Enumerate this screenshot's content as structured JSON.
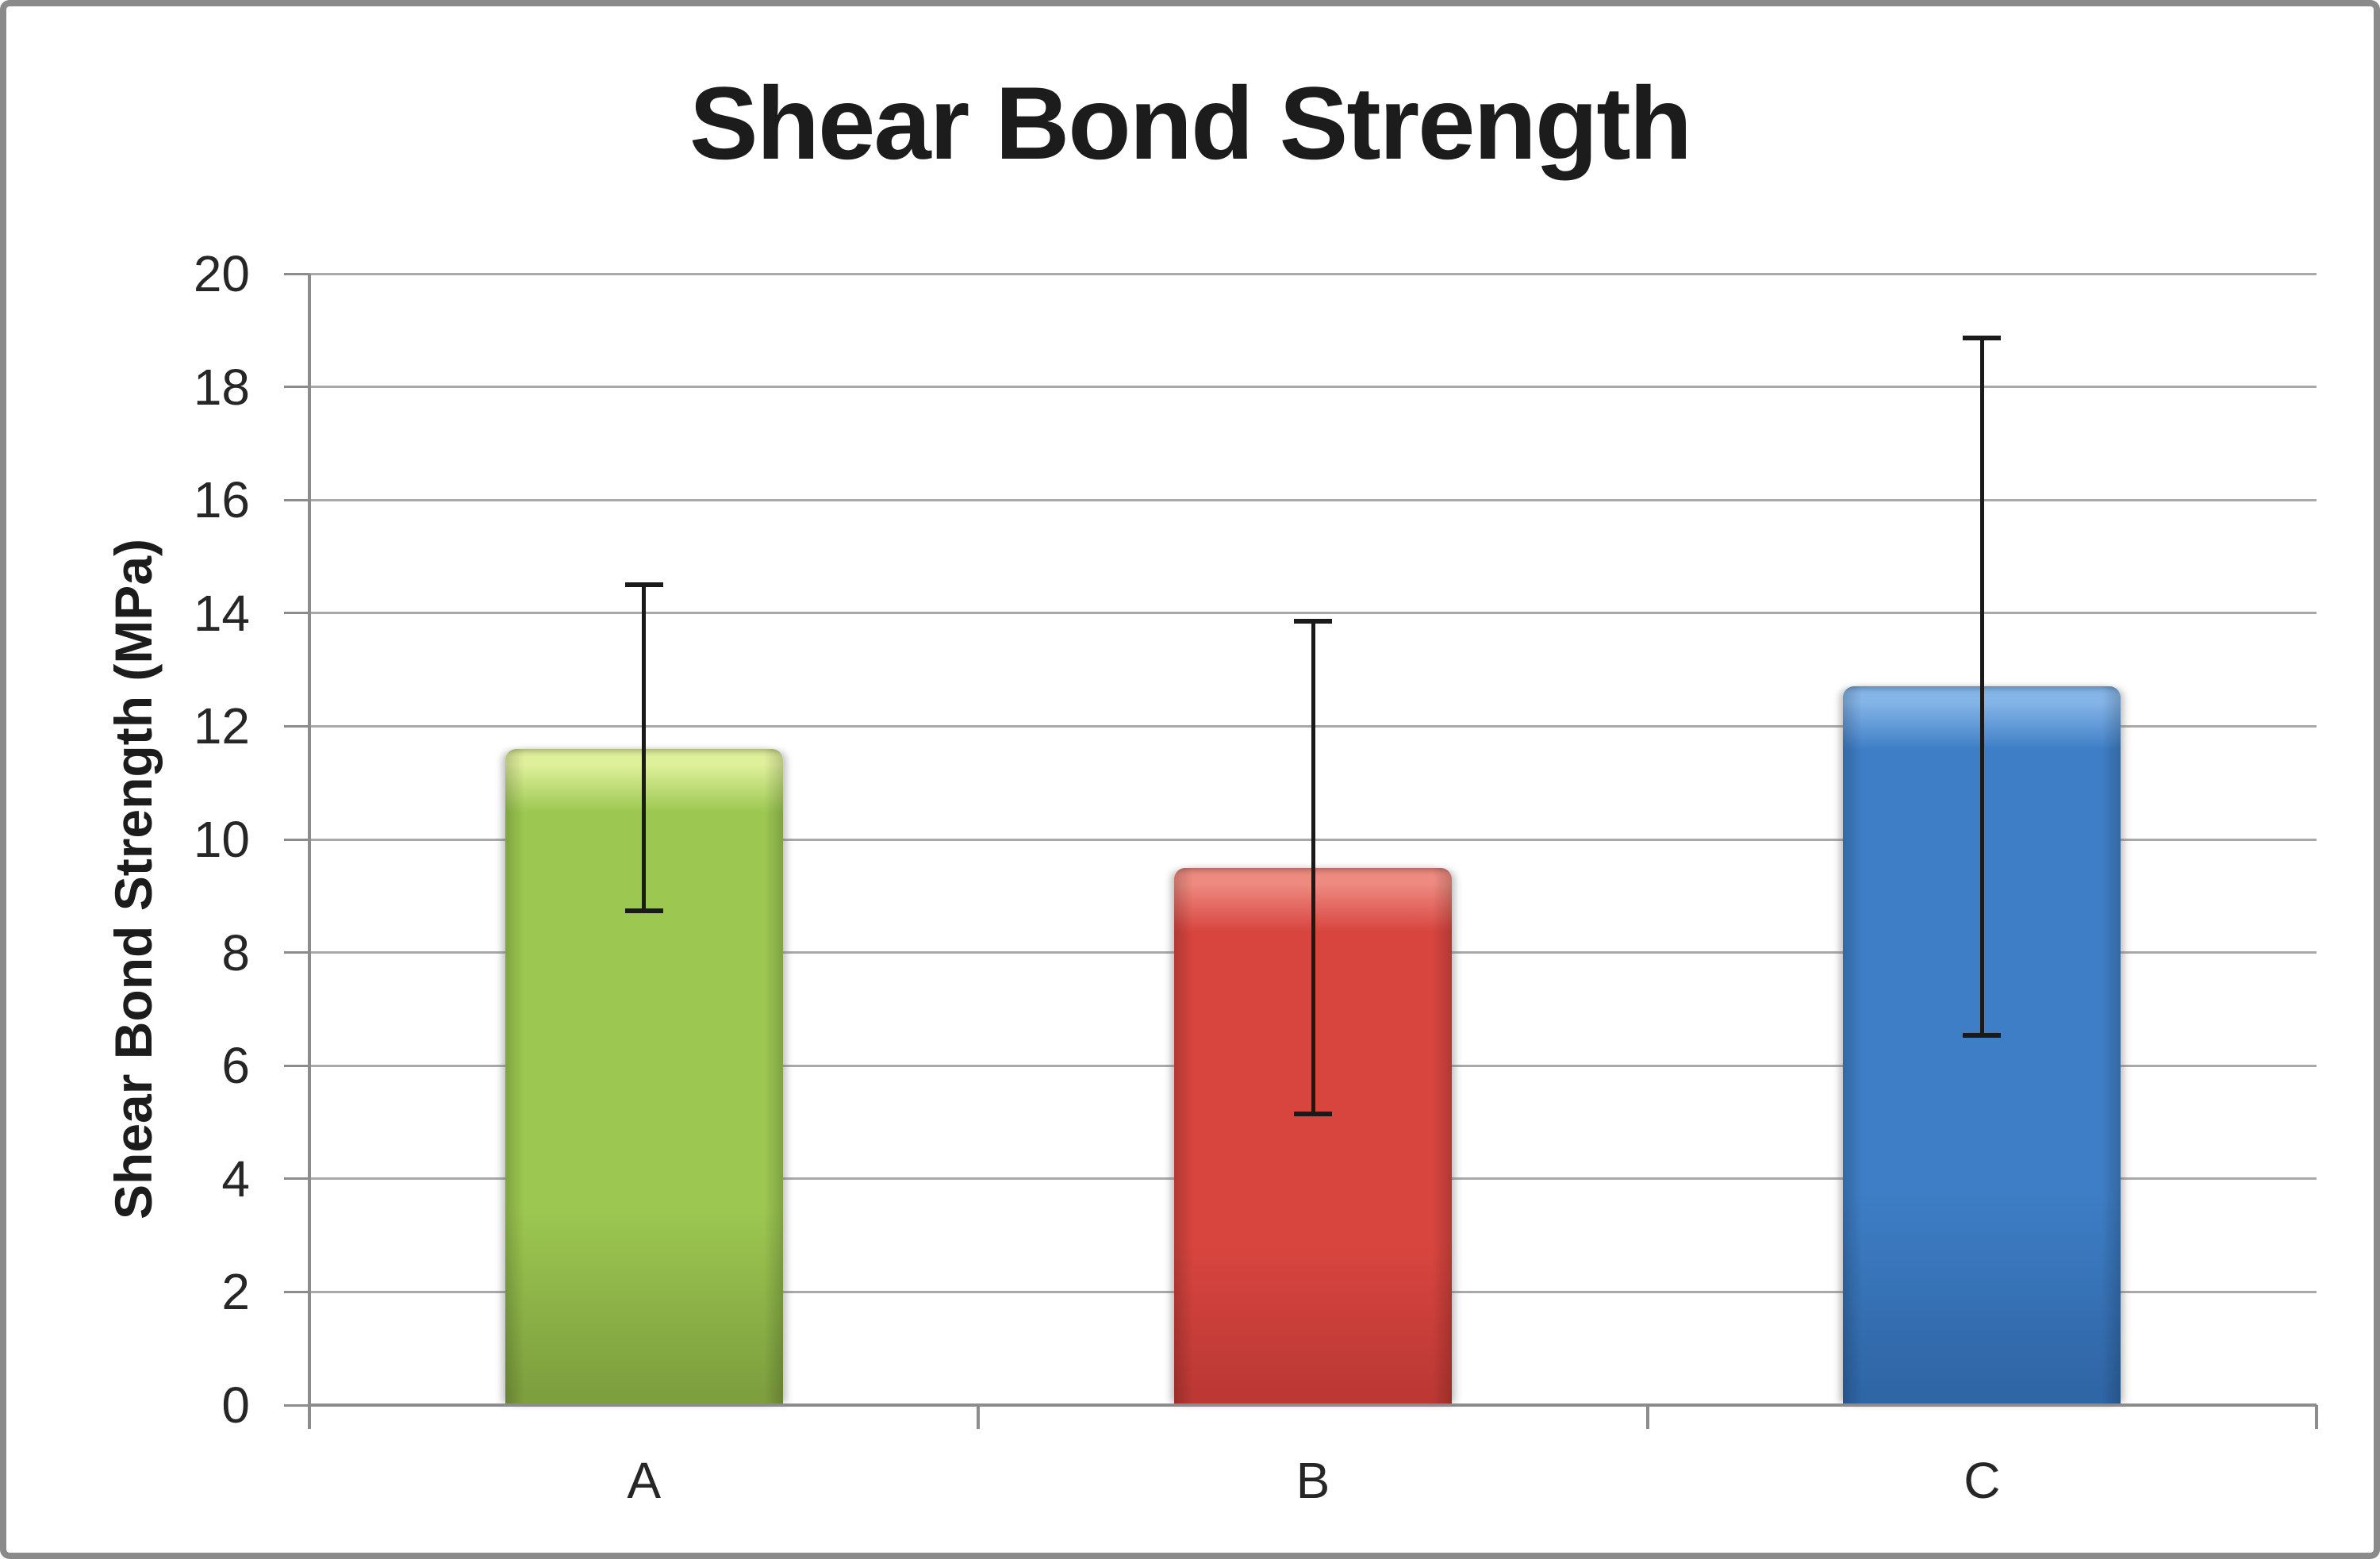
{
  "chart_data": {
    "type": "bar",
    "title": "Shear Bond Strength",
    "ylabel": "Shear Bond Strength (MPa)",
    "xlabel": "",
    "categories": [
      "A",
      "B",
      "C"
    ],
    "series": [
      {
        "name": "Shear Bond Strength",
        "values": [
          11.6,
          9.5,
          12.7
        ],
        "error_top": [
          14.55,
          13.9,
          18.9
        ],
        "error_bottom": [
          8.7,
          5.1,
          6.5
        ]
      }
    ],
    "ylim": [
      0,
      20
    ],
    "ytick_step": 2,
    "ytick_values": [
      0,
      2,
      4,
      6,
      8,
      10,
      12,
      14,
      16,
      18,
      20
    ],
    "ytick_labels": [
      "0",
      "2",
      "4",
      "6",
      "8",
      "10",
      "12",
      "14",
      "16",
      "18",
      "20"
    ],
    "grid": true,
    "legend": false,
    "bar_colors": [
      {
        "name": "green",
        "light": "#dff09b",
        "main": "#9cc851",
        "dark": "#7e9f3e"
      },
      {
        "name": "red",
        "light": "#ee8b81",
        "main": "#d8453f",
        "dark": "#bc3834"
      },
      {
        "name": "blue",
        "light": "#85b5e8",
        "main": "#3e7ec6",
        "dark": "#2f66a6"
      }
    ],
    "error_bar_color": "#1a1a1a",
    "gridline_color": "#a9a9a9",
    "axis_color": "#8c8c8c",
    "text_color": "#262626",
    "frame_border_color": "#8a8a8a",
    "background": "#ffffff"
  }
}
